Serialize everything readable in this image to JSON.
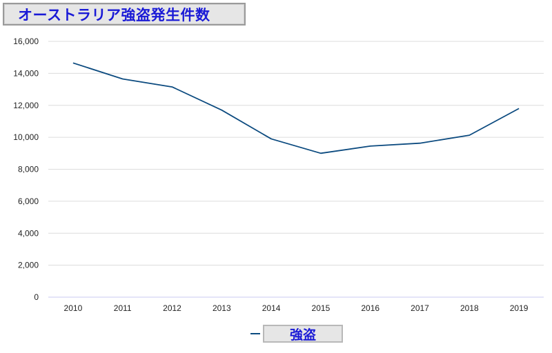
{
  "chart_data": {
    "type": "line",
    "title": "オーストラリア強盗発生件数",
    "xlabel": "",
    "ylabel": "",
    "categories": [
      "2010",
      "2011",
      "2012",
      "2013",
      "2014",
      "2015",
      "2016",
      "2017",
      "2018",
      "2019"
    ],
    "series": [
      {
        "name": "強盗",
        "color": "#0b4a7f",
        "values": [
          14650,
          13650,
          13150,
          11700,
          9900,
          9000,
          9450,
          9630,
          10130,
          11800
        ]
      }
    ],
    "ylim": [
      0,
      16000
    ],
    "yticks": [
      0,
      2000,
      4000,
      6000,
      8000,
      10000,
      12000,
      14000,
      16000
    ],
    "ytick_labels": [
      "0",
      "2,000",
      "4,000",
      "6,000",
      "8,000",
      "10,000",
      "12,000",
      "14,000",
      "16,000"
    ],
    "grid": true,
    "legend": "bottom-center"
  }
}
